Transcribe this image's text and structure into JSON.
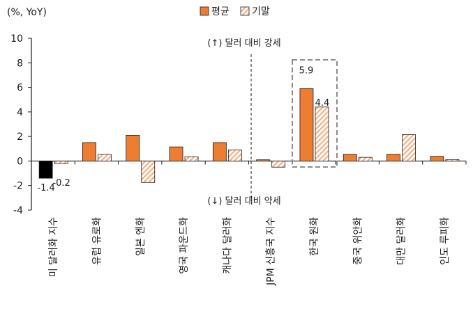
{
  "chart_data": {
    "type": "bar",
    "unit_label": "(%, YoY)",
    "categories": [
      "미 달러화 지수",
      "유럽 유로화",
      "일본 엔화",
      "영국 파운드화",
      "캐나다 달러화",
      "JPM 신흥국 지수",
      "한국 원화",
      "중국 위안화",
      "대만 달러화",
      "인도 루피화"
    ],
    "series": [
      {
        "name": "평균",
        "values": [
          -1.4,
          1.5,
          2.1,
          1.15,
          1.5,
          0.1,
          5.9,
          0.55,
          0.55,
          0.38
        ],
        "color": "#ED7D31"
      },
      {
        "name": "기말",
        "values": [
          -0.2,
          0.55,
          -1.75,
          0.35,
          0.9,
          -0.5,
          4.4,
          0.3,
          2.15,
          0.12
        ],
        "color": "#FBE5D6"
      }
    ],
    "highlight_first_value_color": "#000000",
    "data_labels": [
      {
        "series": 0,
        "index": 0,
        "text": "-1.4"
      },
      {
        "series": 1,
        "index": 0,
        "text": "-0.2"
      },
      {
        "series": 0,
        "index": 6,
        "text": "5.9"
      },
      {
        "series": 1,
        "index": 6,
        "text": "4.4"
      }
    ],
    "annotations": {
      "upper": "(↑) 달러 대비 강세",
      "lower": "(↓) 달러 대비 약세"
    },
    "ylim": [
      -4,
      10
    ],
    "yticks": [
      -4,
      -2,
      0,
      2,
      4,
      6,
      8,
      10
    ],
    "grid": false,
    "legend_position": "top-center"
  }
}
